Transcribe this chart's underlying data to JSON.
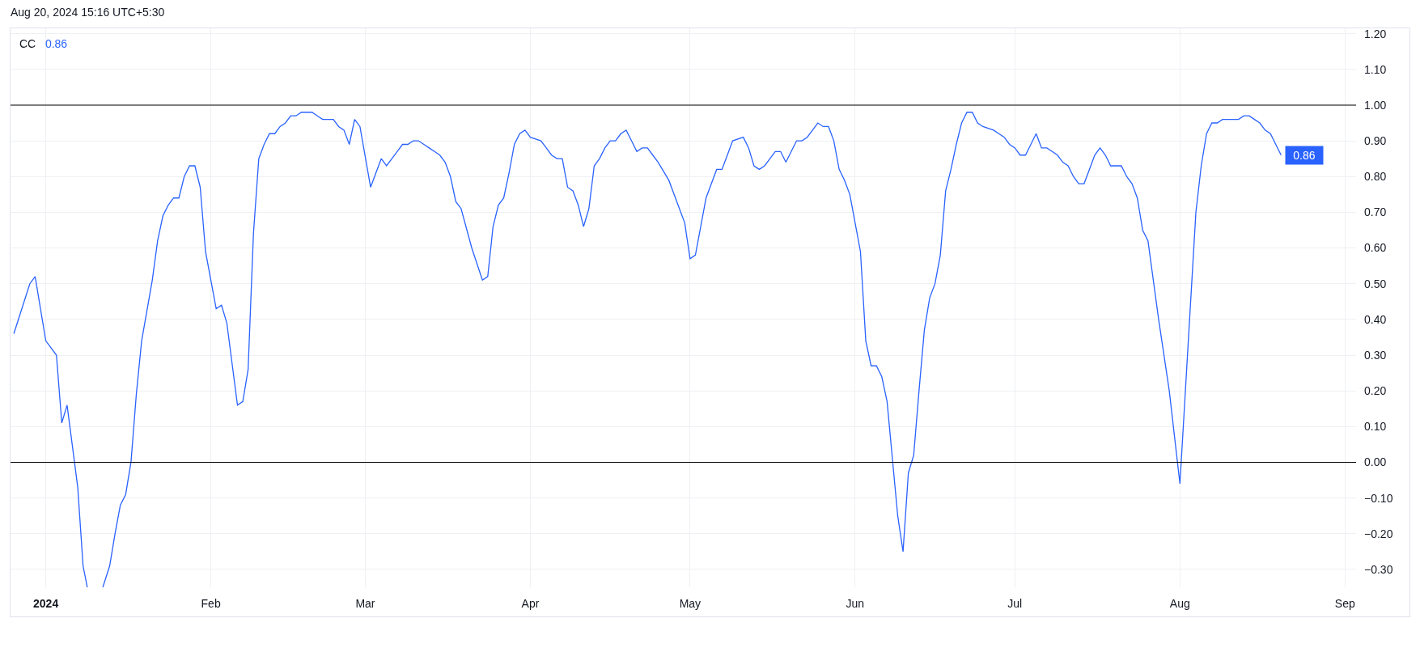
{
  "chart_data": {
    "type": "line",
    "annotations": [
      "Aug 20, 2024 15:16 UTC+5:30"
    ],
    "x": [
      "2023-12-26",
      "2023-12-29",
      "2023-12-30",
      "2024-01-01",
      "2024-01-03",
      "2024-01-04",
      "2024-01-05",
      "2024-01-07",
      "2024-01-08",
      "2024-01-08T19:00",
      "2024-01-10",
      "2024-01-11T17:00",
      "2024-01-13",
      "2024-01-14",
      "2024-01-15",
      "2024-01-16",
      "2024-01-17",
      "2024-01-18",
      "2024-01-19",
      "2024-01-21",
      "2024-01-22",
      "2024-01-23",
      "2024-01-24",
      "2024-01-25",
      "2024-01-26",
      "2024-01-27",
      "2024-01-28",
      "2024-01-29",
      "2024-01-30",
      "2024-01-31",
      "2024-02-01",
      "2024-02-02",
      "2024-02-03",
      "2024-02-04",
      "2024-02-06",
      "2024-02-07",
      "2024-02-08",
      "2024-02-09",
      "2024-02-10",
      "2024-02-11",
      "2024-02-12",
      "2024-02-13",
      "2024-02-14",
      "2024-02-15",
      "2024-02-16",
      "2024-02-17",
      "2024-02-18",
      "2024-02-20",
      "2024-02-21",
      "2024-02-22",
      "2024-02-23",
      "2024-02-24",
      "2024-02-25",
      "2024-02-26",
      "2024-02-27",
      "2024-02-28",
      "2024-02-29",
      "2024-03-02",
      "2024-03-03",
      "2024-03-04",
      "2024-03-05",
      "2024-03-06",
      "2024-03-07",
      "2024-03-08",
      "2024-03-09",
      "2024-03-10",
      "2024-03-11",
      "2024-03-12",
      "2024-03-13",
      "2024-03-14",
      "2024-03-15",
      "2024-03-16",
      "2024-03-17",
      "2024-03-18",
      "2024-03-19",
      "2024-03-21",
      "2024-03-23",
      "2024-03-24",
      "2024-03-25",
      "2024-03-26",
      "2024-03-27",
      "2024-03-28",
      "2024-03-29",
      "2024-03-30",
      "2024-03-31",
      "2024-04-01",
      "2024-04-03",
      "2024-04-04",
      "2024-04-05",
      "2024-04-06",
      "2024-04-07",
      "2024-04-08",
      "2024-04-09",
      "2024-04-10",
      "2024-04-11",
      "2024-04-12",
      "2024-04-13",
      "2024-04-14",
      "2024-04-15",
      "2024-04-16",
      "2024-04-17",
      "2024-04-18",
      "2024-04-19",
      "2024-04-20",
      "2024-04-21",
      "2024-04-22",
      "2024-04-23",
      "2024-04-24",
      "2024-04-25",
      "2024-04-27",
      "2024-04-28",
      "2024-04-29",
      "2024-04-30",
      "2024-05-01",
      "2024-05-02",
      "2024-05-03",
      "2024-05-04",
      "2024-05-05",
      "2024-05-06",
      "2024-05-07",
      "2024-05-08",
      "2024-05-09",
      "2024-05-11",
      "2024-05-12",
      "2024-05-13",
      "2024-05-14",
      "2024-05-15",
      "2024-05-16",
      "2024-05-17",
      "2024-05-18",
      "2024-05-19",
      "2024-05-20",
      "2024-05-21",
      "2024-05-22",
      "2024-05-23",
      "2024-05-24",
      "2024-05-25",
      "2024-05-26",
      "2024-05-27",
      "2024-05-28",
      "2024-05-29",
      "2024-05-30",
      "2024-05-31",
      "2024-06-01",
      "2024-06-02",
      "2024-06-03",
      "2024-06-04",
      "2024-06-05",
      "2024-06-06",
      "2024-06-07",
      "2024-06-09",
      "2024-06-10",
      "2024-06-11",
      "2024-06-12",
      "2024-06-13",
      "2024-06-14",
      "2024-06-15",
      "2024-06-16",
      "2024-06-17",
      "2024-06-18",
      "2024-06-19",
      "2024-06-20",
      "2024-06-21",
      "2024-06-22",
      "2024-06-23",
      "2024-06-24",
      "2024-06-25",
      "2024-06-27",
      "2024-06-28",
      "2024-06-29",
      "2024-06-30",
      "2024-07-01",
      "2024-07-02",
      "2024-07-03",
      "2024-07-04",
      "2024-07-05",
      "2024-07-06",
      "2024-07-07",
      "2024-07-08",
      "2024-07-09",
      "2024-07-10",
      "2024-07-11",
      "2024-07-12",
      "2024-07-13",
      "2024-07-14",
      "2024-07-15",
      "2024-07-16",
      "2024-07-17",
      "2024-07-18",
      "2024-07-19",
      "2024-07-20",
      "2024-07-21",
      "2024-07-22",
      "2024-07-23",
      "2024-07-24",
      "2024-07-25",
      "2024-07-26",
      "2024-07-28",
      "2024-07-30",
      "2024-07-31",
      "2024-08-01",
      "2024-08-04",
      "2024-08-05",
      "2024-08-06",
      "2024-08-07",
      "2024-08-08",
      "2024-08-09",
      "2024-08-11",
      "2024-08-12",
      "2024-08-13",
      "2024-08-14",
      "2024-08-15",
      "2024-08-16",
      "2024-08-17",
      "2024-08-18",
      "2024-08-19",
      "2024-08-20"
    ],
    "series": [
      {
        "name": "CC",
        "color": "#2962ff",
        "values": [
          0.36,
          0.5,
          0.52,
          0.34,
          0.3,
          0.11,
          0.16,
          -0.07,
          -0.29,
          -0.35,
          null,
          -0.35,
          -0.29,
          -0.2,
          -0.12,
          -0.09,
          0.0,
          0.19,
          0.34,
          0.51,
          0.62,
          0.69,
          0.72,
          0.74,
          0.74,
          0.8,
          0.83,
          0.83,
          0.77,
          0.59,
          0.51,
          0.43,
          0.44,
          0.39,
          0.16,
          0.17,
          0.26,
          0.64,
          0.85,
          0.89,
          0.92,
          0.92,
          0.94,
          0.95,
          0.97,
          0.97,
          0.98,
          0.98,
          0.97,
          0.96,
          0.96,
          0.96,
          0.94,
          0.93,
          0.89,
          0.96,
          0.94,
          0.77,
          0.81,
          0.85,
          0.83,
          0.85,
          0.87,
          0.89,
          0.89,
          0.9,
          0.9,
          0.89,
          0.88,
          0.87,
          0.86,
          0.84,
          0.8,
          0.73,
          0.71,
          0.6,
          0.51,
          0.52,
          0.66,
          0.72,
          0.74,
          0.81,
          0.89,
          0.92,
          0.93,
          0.91,
          0.9,
          0.88,
          0.86,
          0.85,
          0.85,
          0.77,
          0.76,
          0.72,
          0.66,
          0.71,
          0.83,
          0.85,
          0.88,
          0.9,
          0.9,
          0.92,
          0.93,
          0.9,
          0.87,
          0.88,
          0.88,
          0.86,
          0.84,
          0.79,
          0.75,
          0.71,
          0.67,
          0.57,
          0.58,
          0.66,
          0.74,
          0.78,
          0.82,
          0.82,
          0.86,
          0.9,
          0.91,
          0.88,
          0.83,
          0.82,
          0.83,
          0.85,
          0.87,
          0.87,
          0.84,
          0.87,
          0.9,
          0.9,
          0.91,
          0.93,
          0.95,
          0.94,
          0.94,
          0.9,
          0.82,
          0.79,
          0.75,
          0.67,
          0.59,
          0.34,
          0.27,
          0.27,
          0.24,
          0.17,
          -0.15,
          -0.25,
          -0.03,
          0.02,
          0.2,
          0.37,
          0.46,
          0.5,
          0.58,
          0.76,
          0.82,
          0.89,
          0.95,
          0.98,
          0.98,
          0.95,
          0.94,
          0.93,
          0.92,
          0.91,
          0.89,
          0.88,
          0.86,
          0.86,
          0.89,
          0.92,
          0.88,
          0.88,
          0.87,
          0.86,
          0.84,
          0.83,
          0.8,
          0.78,
          0.78,
          0.82,
          0.86,
          0.88,
          0.86,
          0.83,
          0.83,
          0.83,
          0.8,
          0.78,
          0.74,
          0.65,
          0.62,
          0.4,
          0.2,
          0.07,
          -0.06,
          0.7,
          0.83,
          0.92,
          0.95,
          0.95,
          0.96,
          0.96,
          0.96,
          0.97,
          0.97,
          0.96,
          0.95,
          0.93,
          0.92,
          0.89,
          0.86
        ],
        "value_labels": [
          null,
          null,
          null,
          null,
          null,
          null,
          null,
          null,
          null,
          null,
          null,
          null,
          null,
          null,
          null,
          null,
          null,
          null,
          null,
          null,
          null,
          null,
          null,
          null,
          null,
          null,
          null,
          null,
          null,
          null,
          null,
          null,
          null,
          null,
          null,
          null,
          null,
          null,
          null,
          null,
          null,
          null,
          null,
          null,
          null,
          null,
          null,
          null,
          null,
          null,
          null,
          null,
          null,
          null,
          null,
          null,
          null,
          null,
          null,
          null,
          null,
          null,
          null,
          null,
          null,
          null,
          null,
          null,
          null,
          null,
          null,
          null,
          null,
          null,
          null,
          null,
          null,
          null,
          null,
          null,
          null,
          null,
          null,
          null,
          null,
          null,
          null,
          null,
          null,
          null,
          null,
          null,
          null,
          null,
          null,
          null,
          null,
          null,
          null,
          null,
          null,
          null,
          null,
          null,
          null,
          null,
          null,
          null,
          null,
          null,
          null,
          null,
          null,
          null,
          null,
          null,
          null,
          null,
          null,
          null,
          null,
          null,
          null,
          null,
          null,
          null,
          null,
          null,
          null,
          null,
          null,
          null,
          null,
          null,
          null,
          null,
          null,
          null,
          null,
          null,
          null,
          null,
          null,
          null,
          null,
          null,
          null,
          null,
          null,
          null,
          null,
          null,
          null,
          null,
          null,
          null,
          null,
          null,
          null,
          null,
          null,
          null,
          null,
          null,
          null,
          null,
          null,
          null,
          null,
          null,
          null,
          null,
          null,
          null,
          null,
          null,
          null,
          null,
          null,
          null,
          null,
          null,
          null,
          null,
          null,
          null,
          null,
          null,
          null,
          null,
          null,
          null,
          null,
          null,
          null,
          null,
          null,
          null,
          null,
          null,
          null,
          null,
          null,
          null,
          null,
          null,
          null,
          null,
          null,
          null,
          null,
          null,
          null,
          null,
          null,
          null,
          "0.86"
        ]
      }
    ],
    "xlim": [
      "2023-12-25T09:00",
      "2024-09-03T02:00"
    ],
    "xticks": [
      {
        "value": "2024-01-01",
        "label": "2024"
      },
      {
        "value": "2024-02-01",
        "label": "Feb"
      },
      {
        "value": "2024-03-01",
        "label": "Mar"
      },
      {
        "value": "2024-04-01",
        "label": "Apr"
      },
      {
        "value": "2024-05-01",
        "label": "May"
      },
      {
        "value": "2024-06-01",
        "label": "Jun"
      },
      {
        "value": "2024-07-01",
        "label": "Jul"
      },
      {
        "value": "2024-08-01",
        "label": "Aug"
      },
      {
        "value": "2024-09-01",
        "label": "Sep"
      }
    ],
    "ylim": [
      -0.35,
      1.215
    ],
    "yticks": [
      {
        "value": -0.3,
        "label": "−0.30"
      },
      {
        "value": -0.2,
        "label": "−0.20"
      },
      {
        "value": -0.1,
        "label": "−0.10"
      },
      {
        "value": 0,
        "label": "0.00"
      },
      {
        "value": 0.1,
        "label": "0.10"
      },
      {
        "value": 0.2,
        "label": "0.20"
      },
      {
        "value": 0.3,
        "label": "0.30"
      },
      {
        "value": 0.4,
        "label": "0.40"
      },
      {
        "value": 0.5,
        "label": "0.50"
      },
      {
        "value": 0.6,
        "label": "0.60"
      },
      {
        "value": 0.7,
        "label": "0.70"
      },
      {
        "value": 0.8,
        "label": "0.80"
      },
      {
        "value": 0.9,
        "label": "0.90"
      },
      {
        "value": 1.0,
        "label": "1.00"
      },
      {
        "value": 1.1,
        "label": "1.10"
      },
      {
        "value": 1.2,
        "label": "1.20"
      }
    ],
    "grid": true,
    "legend": "top left",
    "ref_lines": [
      {
        "axis": "y",
        "value": 1.0,
        "color": "#000000"
      },
      {
        "axis": "y",
        "value": 0,
        "color": "#000000"
      }
    ]
  }
}
